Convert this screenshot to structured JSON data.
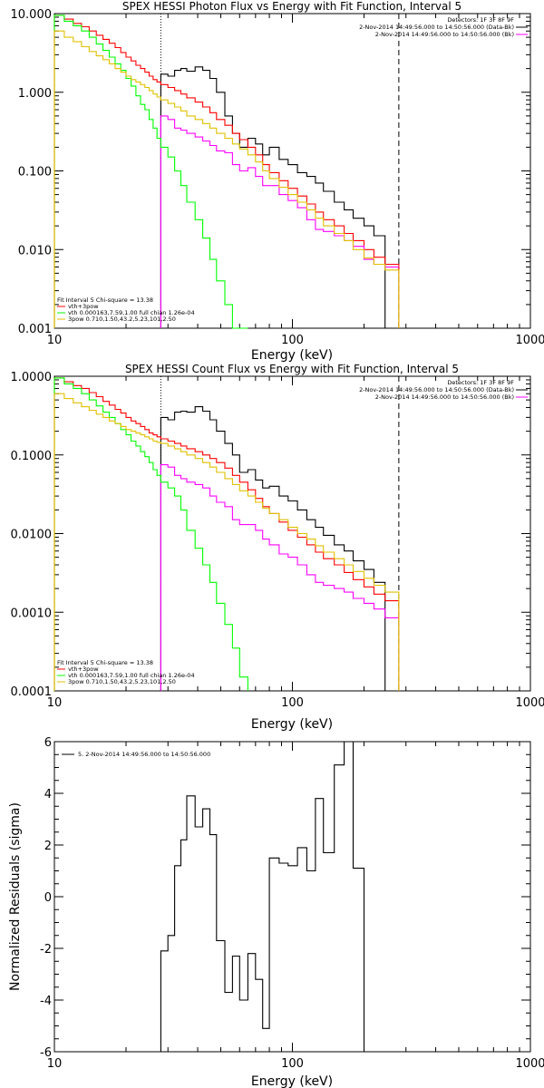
{
  "chart_data": [
    {
      "type": "line",
      "title": "SPEX HESSI Photon Flux vs Energy with Fit Function, Interval 5",
      "xlabel": "Energy (keV)",
      "ylabel": "",
      "xscale": "log",
      "yscale": "log",
      "xlim": [
        10,
        1000
      ],
      "ylim": [
        0.001,
        10
      ],
      "xticks": [
        "10",
        "100",
        "1000"
      ],
      "yticks": [
        "0.001",
        "0.010",
        "0.100",
        "1.000",
        "10.000"
      ],
      "legend_tr": [
        "Detectors: 1F 3F 8F 9F",
        "2-Nov-2014 14:49:56.000 to 14:50:56.000 (Data-Bk)",
        "2-Nov-2014 14:49:56.000 to 14:50:56.000 (Bk)"
      ],
      "legend_bl": [
        "Fit Interval 5   Chi-square = 13.38",
        "vth+3pow",
        "vth 0.000163,7.59,1.00   full chian 1.26e-04",
        "3pow 0.710,1.50,43.2,5.23,101,2.50"
      ],
      "vlines": [
        {
          "x": 28,
          "style": "dotted"
        },
        {
          "x": 280,
          "style": "dashed"
        }
      ],
      "edges": [
        10.0,
        11.0,
        12.0,
        13.0,
        14.0,
        15.0,
        16.0,
        17.0,
        18.0,
        19.0,
        20.0,
        21.0,
        22.0,
        23.0,
        24.0,
        25.0,
        26.0,
        27.0,
        28.0,
        30.0,
        32.0,
        34.0,
        36.0,
        39.0,
        42.0,
        45.0,
        48.0,
        52.0,
        56.0,
        60.0,
        65.0,
        70.0,
        75.0,
        80.0,
        88.0,
        96.0,
        105.0,
        115.0,
        125.0,
        135.0,
        150.0,
        165.0,
        180.0,
        200.0,
        220.0,
        245.0,
        280.0
      ],
      "series": [
        {
          "color": "#000000",
          "x0": 28.0,
          "values": [
            1.7,
            1.6,
            1.9,
            2.0,
            1.85,
            2.1,
            1.9,
            1.5,
            1.0,
            0.5,
            0.3,
            0.2,
            0.26,
            0.22,
            0.16,
            0.2,
            0.14,
            0.12,
            0.095,
            0.085,
            0.07,
            0.055,
            0.04,
            0.032,
            0.025,
            0.02,
            0.015
          ]
        },
        {
          "color": "#ff0000",
          "x0": 10.0,
          "values": [
            9.5,
            8.5,
            7.5,
            6.8,
            6.0,
            5.3,
            4.7,
            4.2,
            3.7,
            3.2,
            2.8,
            2.5,
            2.2,
            2.0,
            1.8,
            1.6,
            1.45,
            1.35,
            1.25,
            1.15,
            1.05,
            0.95,
            0.85,
            0.75,
            0.65,
            0.55,
            0.45,
            0.38,
            0.3,
            0.25,
            0.2,
            0.16,
            0.12,
            0.095,
            0.075,
            0.06,
            0.048,
            0.038,
            0.03,
            0.024,
            0.02,
            0.016,
            0.013,
            0.01,
            0.008,
            0.0065
          ]
        },
        {
          "color": "#ff00ff",
          "x0": 28.0,
          "values": [
            0.5,
            0.45,
            0.35,
            0.33,
            0.3,
            0.27,
            0.24,
            0.21,
            0.18,
            0.17,
            0.12,
            0.1,
            0.11,
            0.085,
            0.065,
            0.065,
            0.05,
            0.042,
            0.034,
            0.024,
            0.018,
            0.017,
            0.015,
            0.013,
            0.011,
            0.0075,
            0.0065,
            0.006,
            0.005
          ]
        },
        {
          "color": "#00ff00",
          "x0": 10.0,
          "values": [
            9.5,
            8.0,
            7.0,
            6.0,
            5.0,
            4.1,
            3.4,
            2.8,
            2.3,
            1.9,
            1.5,
            1.2,
            0.9,
            0.7,
            0.6,
            0.45,
            0.35,
            0.26,
            0.2,
            0.15,
            0.1,
            0.065,
            0.04,
            0.024,
            0.014,
            0.0075,
            0.004,
            0.002,
            0.0009,
            0.0004
          ]
        },
        {
          "color": "#e0c000",
          "x0": 10.0,
          "values": [
            6.0,
            5.0,
            4.4,
            3.8,
            3.3,
            2.9,
            2.6,
            2.3,
            2.0,
            1.8,
            1.6,
            1.45,
            1.35,
            1.25,
            1.15,
            1.05,
            0.95,
            0.87,
            0.8,
            0.72,
            0.65,
            0.58,
            0.5,
            0.45,
            0.4,
            0.35,
            0.3,
            0.26,
            0.22,
            0.19,
            0.16,
            0.13,
            0.1,
            0.08,
            0.062,
            0.05,
            0.04,
            0.032,
            0.025,
            0.02,
            0.016,
            0.013,
            0.01,
            0.0078,
            0.0065,
            0.0055
          ]
        }
      ]
    },
    {
      "type": "line",
      "title": "SPEX HESSI Count Flux vs Energy with Fit Function, Interval 5",
      "xlabel": "Energy (keV)",
      "ylabel": "",
      "xscale": "log",
      "yscale": "log",
      "xlim": [
        10,
        1000
      ],
      "ylim": [
        0.0001,
        1
      ],
      "xticks": [
        "10",
        "100",
        "1000"
      ],
      "yticks": [
        "0.0001",
        "0.0010",
        "0.0100",
        "0.1000",
        "1.0000"
      ],
      "legend_tr": [
        "Detectors: 1F 3F 8F 9F",
        "2-Nov-2014 14:49:56.000 to 14:50:56.000 (Data-Bk)",
        "2-Nov-2014 14:49:56.000 to 14:50:56.000 (Bk)"
      ],
      "legend_bl": [
        "Fit Interval 5   Chi-square = 13.38",
        "vth+3pow",
        "vth 0.000163,7.59,1.00   full chian 1.26e-04",
        "3pow 0.710,1.50,43.2,5.23,101,2.50"
      ],
      "vlines": [
        {
          "x": 28,
          "style": "dotted"
        },
        {
          "x": 280,
          "style": "dashed"
        }
      ],
      "edges": [
        10.0,
        11.0,
        12.0,
        13.0,
        14.0,
        15.0,
        16.0,
        17.0,
        18.0,
        19.0,
        20.0,
        21.0,
        22.0,
        23.0,
        24.0,
        25.0,
        26.0,
        27.0,
        28.0,
        30.0,
        32.0,
        34.0,
        36.0,
        39.0,
        42.0,
        45.0,
        48.0,
        52.0,
        56.0,
        60.0,
        65.0,
        70.0,
        75.0,
        80.0,
        88.0,
        96.0,
        105.0,
        115.0,
        125.0,
        135.0,
        150.0,
        165.0,
        180.0,
        200.0,
        220.0,
        245.0,
        280.0
      ],
      "series": [
        {
          "color": "#000000",
          "x0": 28.0,
          "values": [
            0.3,
            0.28,
            0.35,
            0.36,
            0.35,
            0.41,
            0.36,
            0.28,
            0.2,
            0.14,
            0.1,
            0.06,
            0.065,
            0.048,
            0.038,
            0.04,
            0.03,
            0.026,
            0.02,
            0.015,
            0.012,
            0.0095,
            0.0072,
            0.006,
            0.0045,
            0.0035,
            0.0024
          ]
        },
        {
          "color": "#ff0000",
          "x0": 10.0,
          "values": [
            0.95,
            0.85,
            0.76,
            0.7,
            0.62,
            0.55,
            0.48,
            0.43,
            0.38,
            0.34,
            0.3,
            0.27,
            0.25,
            0.23,
            0.21,
            0.19,
            0.18,
            0.17,
            0.16,
            0.15,
            0.14,
            0.13,
            0.12,
            0.11,
            0.1,
            0.09,
            0.08,
            0.068,
            0.055,
            0.045,
            0.036,
            0.028,
            0.022,
            0.018,
            0.014,
            0.011,
            0.009,
            0.0072,
            0.0058,
            0.0048,
            0.004,
            0.0032,
            0.0026,
            0.0021,
            0.0017,
            0.0014
          ]
        },
        {
          "color": "#ff00ff",
          "x0": 28.0,
          "values": [
            0.075,
            0.07,
            0.055,
            0.05,
            0.045,
            0.042,
            0.038,
            0.03,
            0.025,
            0.022,
            0.015,
            0.013,
            0.013,
            0.011,
            0.0085,
            0.0072,
            0.0055,
            0.005,
            0.004,
            0.003,
            0.0024,
            0.0022,
            0.002,
            0.0018,
            0.0015,
            0.0013,
            0.0011,
            0.00085,
            0.00075
          ]
        },
        {
          "color": "#00ff00",
          "x0": 10.0,
          "values": [
            0.95,
            0.8,
            0.7,
            0.6,
            0.5,
            0.42,
            0.35,
            0.3,
            0.25,
            0.21,
            0.18,
            0.15,
            0.13,
            0.11,
            0.095,
            0.08,
            0.065,
            0.055,
            0.045,
            0.038,
            0.03,
            0.02,
            0.011,
            0.0065,
            0.004,
            0.0024,
            0.0013,
            0.0007,
            0.00035,
            0.00015
          ]
        },
        {
          "color": "#e0c000",
          "x0": 10.0,
          "values": [
            0.6,
            0.52,
            0.46,
            0.41,
            0.37,
            0.33,
            0.3,
            0.27,
            0.25,
            0.23,
            0.21,
            0.2,
            0.19,
            0.18,
            0.17,
            0.16,
            0.15,
            0.145,
            0.14,
            0.13,
            0.12,
            0.11,
            0.1,
            0.09,
            0.08,
            0.07,
            0.06,
            0.05,
            0.042,
            0.035,
            0.03,
            0.025,
            0.021,
            0.018,
            0.015,
            0.012,
            0.01,
            0.0085,
            0.007,
            0.0058,
            0.0048,
            0.004,
            0.0033,
            0.0027,
            0.0022,
            0.0018
          ]
        }
      ]
    },
    {
      "type": "line",
      "title": "",
      "xlabel": "Energy (keV)",
      "ylabel": "Normalized Residuals (sigma)",
      "xscale": "log",
      "yscale": "linear",
      "xlim": [
        10,
        1000
      ],
      "ylim": [
        -6,
        6
      ],
      "xticks": [
        "10",
        "100",
        "1000"
      ],
      "yticks": [
        "-6",
        "-4",
        "-2",
        "0",
        "2",
        "4",
        "6"
      ],
      "legend": "5.  2-Nov-2014 14:49:56.000 to 14:50:56.000",
      "edges": [
        28.0,
        30.0,
        32.0,
        34.0,
        36.0,
        39.0,
        42.0,
        45.0,
        48.0,
        52.0,
        56.0,
        60.0,
        65.0,
        70.0,
        75.0,
        80.0,
        88.0,
        96.0,
        105.0,
        115.0,
        125.0,
        135.0,
        150.0,
        165.0,
        180.0,
        200.0,
        220.0,
        245.0,
        280.0
      ],
      "series": [
        {
          "color": "#000000",
          "values": [
            -2.1,
            -1.5,
            1.2,
            2.2,
            3.9,
            2.7,
            3.4,
            2.4,
            -1.7,
            -3.7,
            -2.3,
            -4.0,
            -2.2,
            -3.2,
            -5.1,
            1.5,
            1.3,
            1.2,
            1.9,
            1.0,
            3.8,
            1.7,
            5.1,
            6.0,
            1.1
          ]
        }
      ]
    }
  ]
}
